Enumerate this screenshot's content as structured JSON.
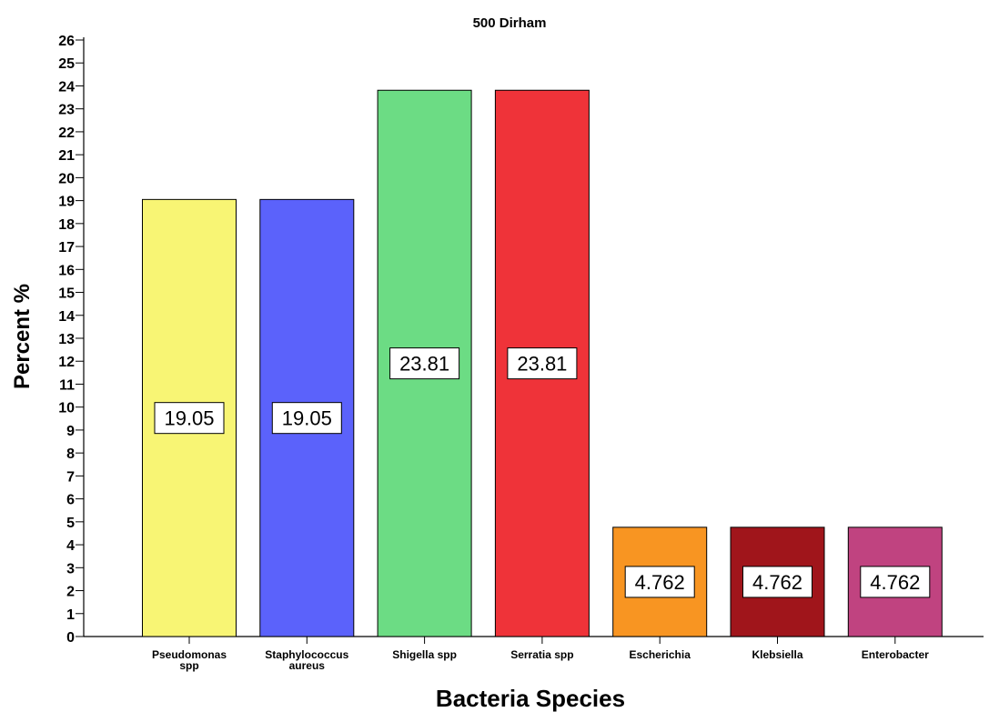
{
  "chart_data": {
    "type": "bar",
    "title": "500 Dirham",
    "xlabel": "Bacteria Species",
    "ylabel": "Percent %",
    "ylim": [
      0,
      26
    ],
    "yticks": [
      0,
      1,
      2,
      3,
      4,
      5,
      6,
      7,
      8,
      9,
      10,
      11,
      12,
      13,
      14,
      15,
      16,
      17,
      18,
      19,
      20,
      21,
      22,
      23,
      24,
      25,
      26
    ],
    "categories": [
      [
        "Pseudomonas",
        "spp"
      ],
      [
        "Staphylococcus",
        "aureus"
      ],
      [
        "Shigella spp"
      ],
      [
        "Serratia spp"
      ],
      [
        "Escherichia"
      ],
      [
        "Klebsiella"
      ],
      [
        "Enterobacter"
      ]
    ],
    "values": [
      19.05,
      19.05,
      23.81,
      23.81,
      4.762,
      4.762,
      4.762
    ],
    "data_labels": [
      "19.05",
      "19.05",
      "23.81",
      "23.81",
      "4.762",
      "4.762",
      "4.762"
    ],
    "colors": [
      "#f8f574",
      "#5b62fb",
      "#6cdc84",
      "#ef3339",
      "#f89522",
      "#a0151b",
      "#c04380"
    ],
    "grid": false,
    "legend": "none"
  }
}
